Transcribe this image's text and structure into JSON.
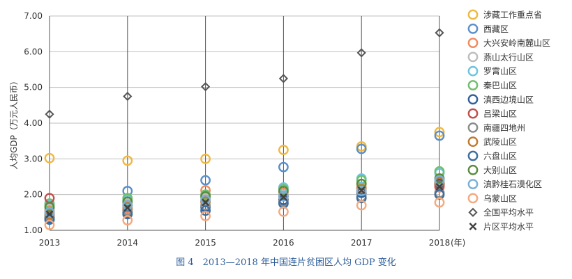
{
  "caption": "图 4　2013—2018 年中国连片贫困区人均 GDP 变化",
  "chart_data": {
    "type": "scatter",
    "title": "",
    "xlabel": "(年)",
    "ylabel": "人均GDP（万元人民币）",
    "x": [
      2013,
      2014,
      2015,
      2016,
      2017,
      2018
    ],
    "x_tick_labels": [
      "2013",
      "2014",
      "2015",
      "2016",
      "2017",
      "2018"
    ],
    "ylim": [
      1.0,
      7.0
    ],
    "y_ticks": [
      1.0,
      2.0,
      3.0,
      4.0,
      5.0,
      6.0,
      7.0
    ],
    "y_tick_labels": [
      "1.00",
      "2.00",
      "3.00",
      "4.00",
      "5.00",
      "6.00",
      "7.00"
    ],
    "grid": true,
    "legend_position": "right",
    "series": [
      {
        "name": "涉藏工作重点省",
        "color": "#f0b840",
        "marker": "circle",
        "values": [
          3.02,
          2.95,
          3.0,
          3.25,
          3.35,
          3.75
        ]
      },
      {
        "name": "西藏区",
        "color": "#5b8fc9",
        "marker": "circle",
        "values": [
          1.3,
          2.1,
          2.4,
          2.77,
          3.28,
          3.65
        ]
      },
      {
        "name": "大兴安岭南麓山区",
        "color": "#f08c60",
        "marker": "circle",
        "values": [
          1.55,
          1.6,
          2.12,
          2.05,
          2.2,
          2.2
        ]
      },
      {
        "name": "燕山太行山区",
        "color": "#bdbdbd",
        "marker": "circle",
        "values": [
          1.6,
          1.75,
          1.9,
          2.0,
          2.1,
          2.3
        ]
      },
      {
        "name": "罗霄山区",
        "color": "#6cc3e0",
        "marker": "circle",
        "values": [
          1.7,
          1.85,
          1.95,
          2.2,
          2.45,
          2.6
        ]
      },
      {
        "name": "秦巴山区",
        "color": "#6fc06a",
        "marker": "circle",
        "values": [
          1.75,
          1.9,
          2.0,
          2.15,
          2.4,
          2.65
        ]
      },
      {
        "name": "滇西边境山区",
        "color": "#2f5f9a",
        "marker": "circle",
        "values": [
          1.35,
          1.5,
          1.65,
          1.85,
          2.05,
          2.3
        ]
      },
      {
        "name": "吕梁山区",
        "color": "#c0504d",
        "marker": "circle",
        "values": [
          1.9,
          1.7,
          1.8,
          1.95,
          2.1,
          2.25
        ]
      },
      {
        "name": "南疆四地州",
        "color": "#8c8c8c",
        "marker": "circle",
        "values": [
          1.4,
          1.55,
          1.7,
          1.8,
          1.95,
          2.05
        ]
      },
      {
        "name": "武陵山区",
        "color": "#c07a30",
        "marker": "circle",
        "values": [
          1.45,
          1.65,
          1.8,
          1.95,
          2.15,
          2.35
        ]
      },
      {
        "name": "六盘山区",
        "color": "#3a6f9f",
        "marker": "circle",
        "values": [
          1.3,
          1.45,
          1.55,
          1.75,
          1.9,
          2.0
        ]
      },
      {
        "name": "大别山区",
        "color": "#5a8a3c",
        "marker": "circle",
        "values": [
          1.65,
          1.8,
          1.95,
          2.1,
          2.3,
          2.45
        ]
      },
      {
        "name": "滇黔桂石漠化区",
        "color": "#7ab0d8",
        "marker": "circle",
        "values": [
          1.5,
          1.7,
          1.85,
          1.95,
          2.1,
          2.4
        ]
      },
      {
        "name": "乌蒙山区",
        "color": "#f4a97e",
        "marker": "circle",
        "values": [
          1.15,
          1.28,
          1.4,
          1.52,
          1.7,
          1.78
        ]
      },
      {
        "name": "全国平均水平",
        "color": "#555555",
        "marker": "diamond",
        "values": [
          4.25,
          4.75,
          5.02,
          5.25,
          5.97,
          6.53
        ]
      },
      {
        "name": "片区平均水平",
        "color": "#404040",
        "marker": "x",
        "values": [
          1.45,
          1.63,
          1.78,
          1.93,
          2.12,
          2.22
        ]
      }
    ]
  }
}
